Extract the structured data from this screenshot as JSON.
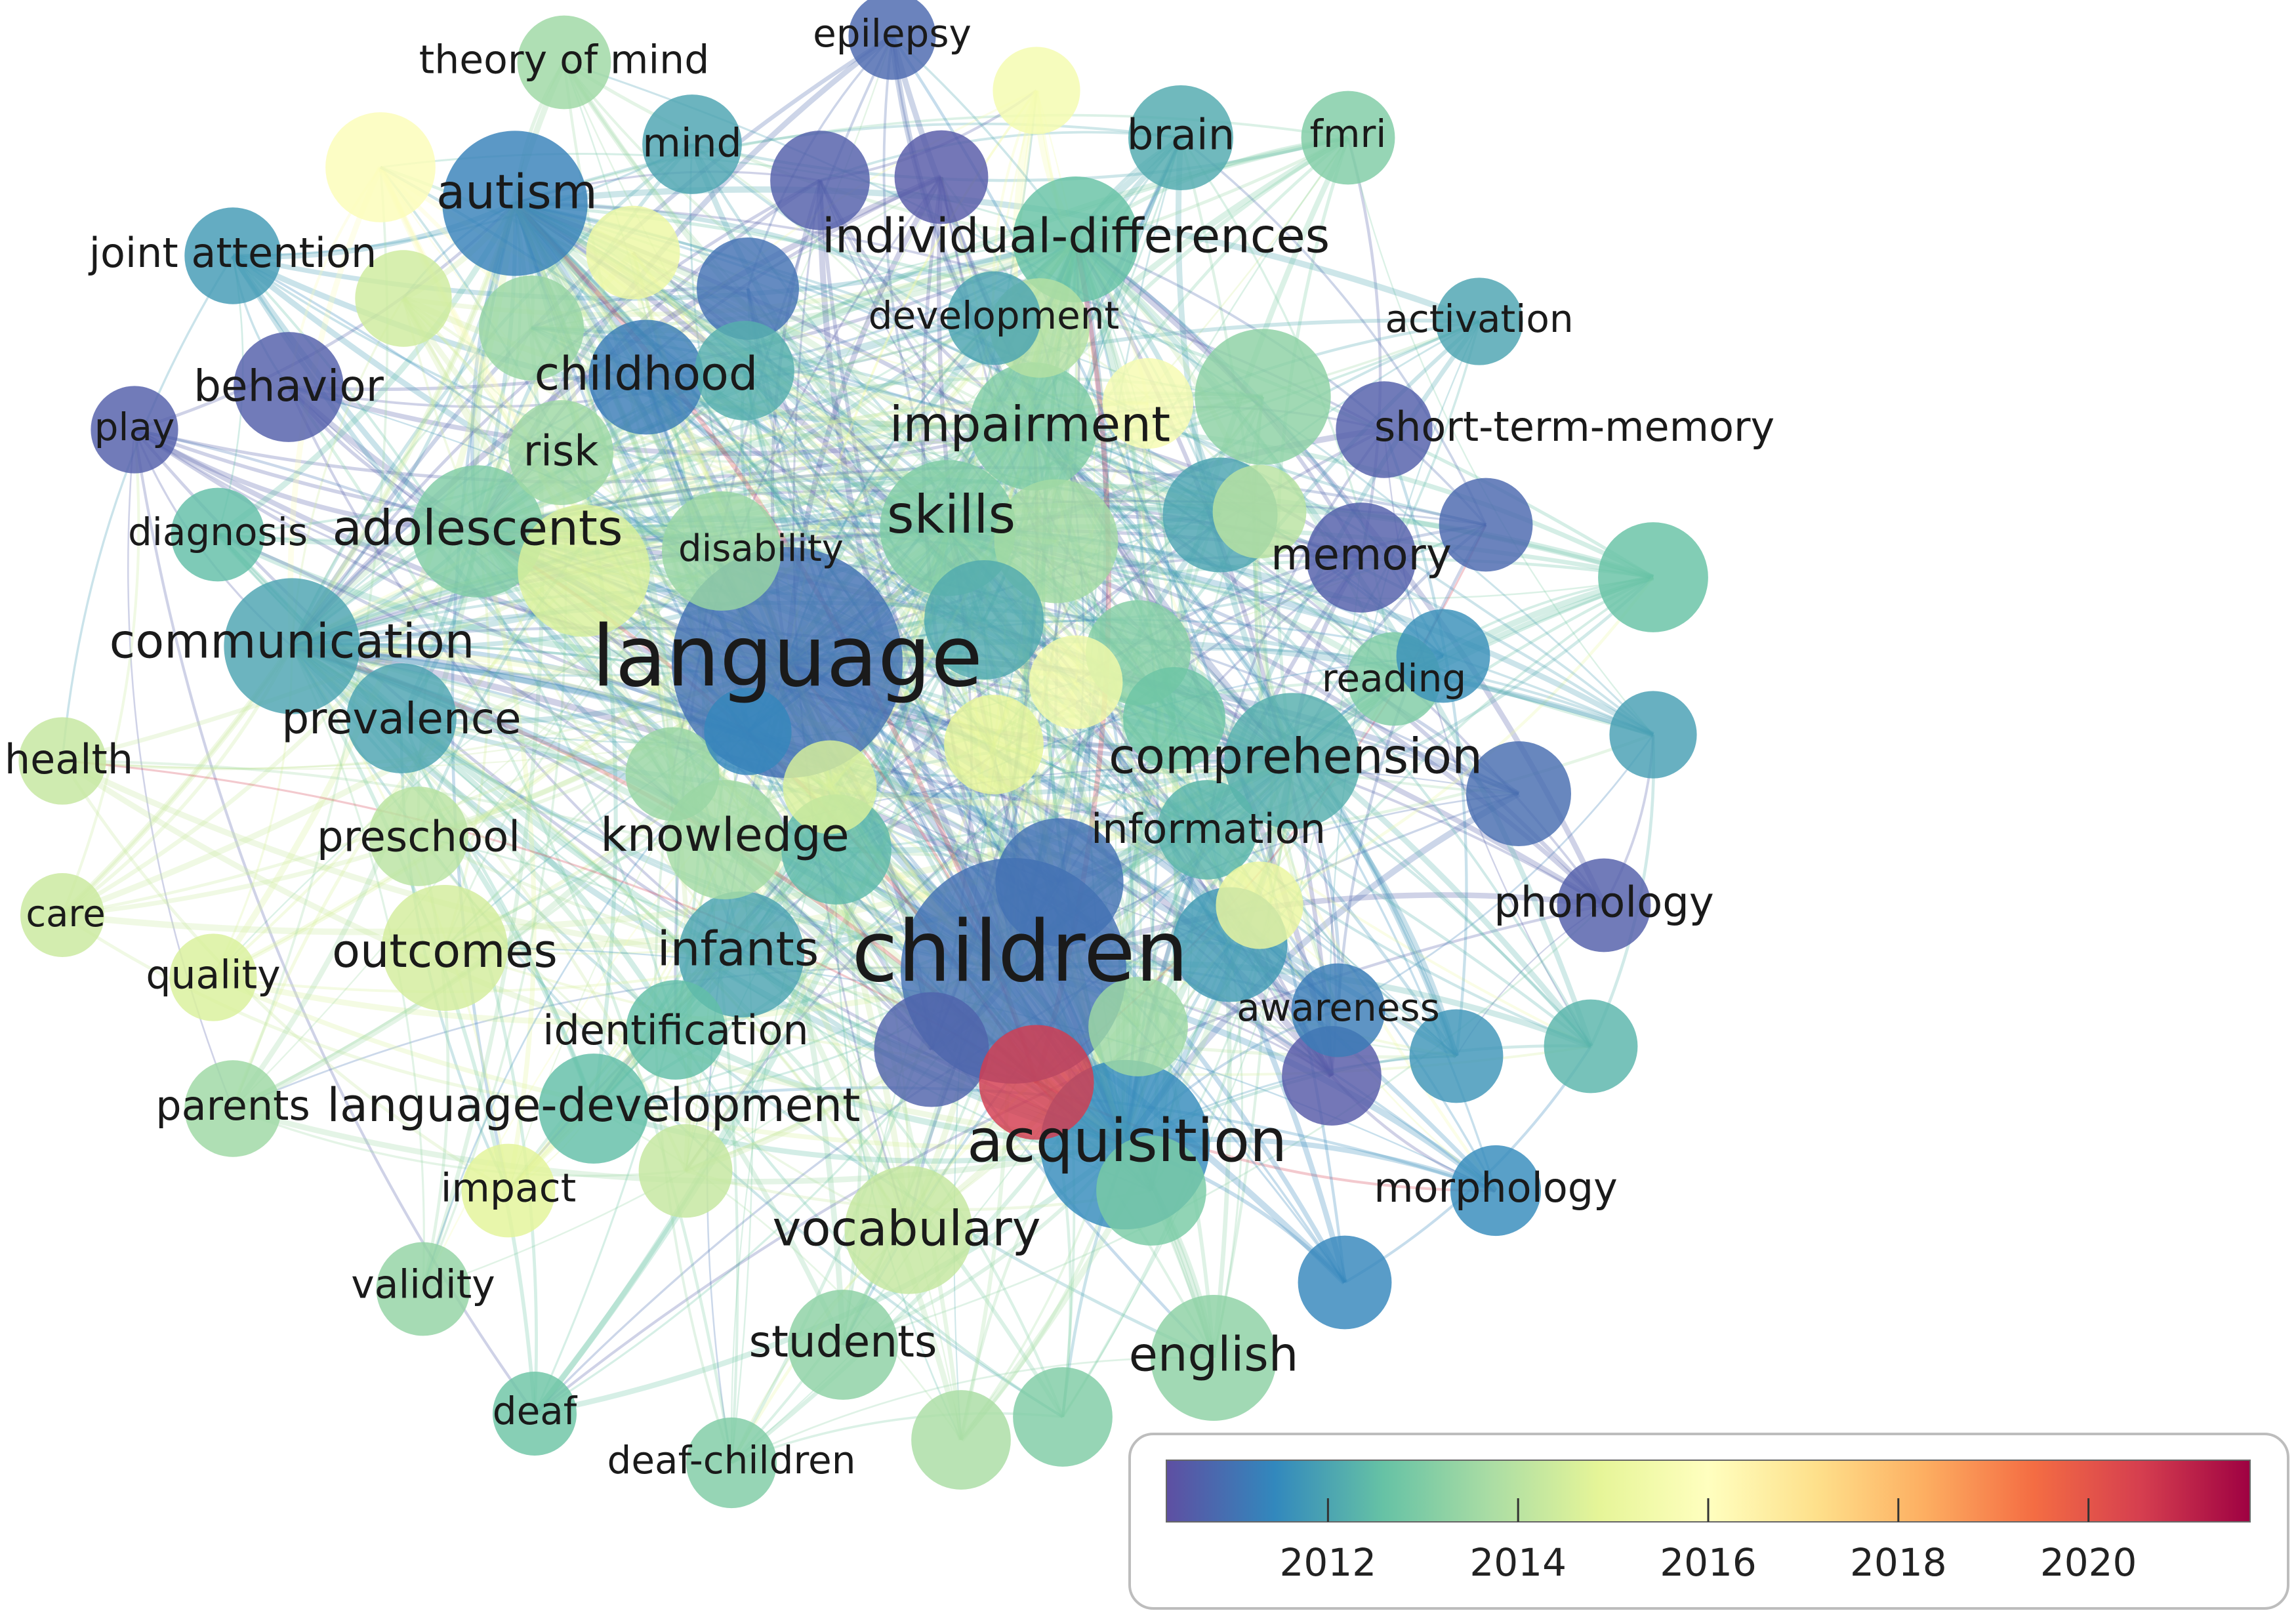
{
  "network": {
    "nodes": [
      {
        "id": "language",
        "label": "language",
        "year": 2011.0,
        "weight": 100
      },
      {
        "id": "children",
        "label": "children",
        "year": 2011.0,
        "weight": 95
      },
      {
        "id": "acquisition",
        "label": "acquisition",
        "year": 2011.5,
        "weight": 50
      },
      {
        "id": "comprehension",
        "label": "comprehension",
        "year": 2012.2,
        "weight": 30
      },
      {
        "id": "autism",
        "label": "autism",
        "year": 2011.3,
        "weight": 35
      },
      {
        "id": "skills",
        "label": "skills",
        "year": 2013.0,
        "weight": 30
      },
      {
        "id": "adolescents",
        "label": "adolescents",
        "year": 2013.0,
        "weight": 28
      },
      {
        "id": "communication",
        "label": "communication",
        "year": 2012.0,
        "weight": 30
      },
      {
        "id": "impairment",
        "label": "impairment",
        "year": 2013.0,
        "weight": 26
      },
      {
        "id": "individual-differences",
        "label": "individual-differences",
        "year": 2012.6,
        "weight": 25
      },
      {
        "id": "vocabulary",
        "label": "vocabulary",
        "year": 2014.2,
        "weight": 26
      },
      {
        "id": "english",
        "label": "english",
        "year": 2013.2,
        "weight": 25
      },
      {
        "id": "outcomes",
        "label": "outcomes",
        "year": 2014.5,
        "weight": 25
      },
      {
        "id": "infants",
        "label": "infants",
        "year": 2012.0,
        "weight": 25
      },
      {
        "id": "knowledge",
        "label": "knowledge",
        "year": 2013.6,
        "weight": 22
      },
      {
        "id": "childhood",
        "label": "childhood",
        "year": 2011.2,
        "weight": 20
      },
      {
        "id": "behavior",
        "label": "behavior",
        "year": 2010.6,
        "weight": 18
      },
      {
        "id": "memory",
        "label": "memory",
        "year": 2010.6,
        "weight": 18
      },
      {
        "id": "prevalence",
        "label": "prevalence",
        "year": 2012.0,
        "weight": 18
      },
      {
        "id": "language-development",
        "label": "language-development",
        "year": 2012.5,
        "weight": 18
      },
      {
        "id": "students",
        "label": "students",
        "year": 2013.2,
        "weight": 18
      },
      {
        "id": "brain",
        "label": "brain",
        "year": 2012.1,
        "weight": 16
      },
      {
        "id": "risk",
        "label": "risk",
        "year": 2013.5,
        "weight": 16
      },
      {
        "id": "mind",
        "label": "mind",
        "year": 2012.0,
        "weight": 14
      },
      {
        "id": "preschool",
        "label": "preschool",
        "year": 2014.0,
        "weight": 14
      },
      {
        "id": "information",
        "label": "information",
        "year": 2012.3,
        "weight": 14
      },
      {
        "id": "identification",
        "label": "identification",
        "year": 2012.5,
        "weight": 14
      },
      {
        "id": "short-term-memory",
        "label": "short-term-memory",
        "year": 2010.6,
        "weight": 13
      },
      {
        "id": "development",
        "label": "development",
        "year": 2012.0,
        "weight": 12
      },
      {
        "id": "fmri",
        "label": "fmri",
        "year": 2013.0,
        "weight": 12
      },
      {
        "id": "activation",
        "label": "activation",
        "year": 2012.0,
        "weight": 10
      },
      {
        "id": "theory of mind",
        "label": "theory of mind",
        "year": 2013.5,
        "weight": 12
      },
      {
        "id": "joint attention",
        "label": "joint attention",
        "year": 2011.8,
        "weight": 13
      },
      {
        "id": "epilepsy",
        "label": "epilepsy",
        "year": 2010.8,
        "weight": 10
      },
      {
        "id": "play",
        "label": "play",
        "year": 2010.6,
        "weight": 10
      },
      {
        "id": "diagnosis",
        "label": "diagnosis",
        "year": 2012.5,
        "weight": 12
      },
      {
        "id": "disability",
        "label": "disability",
        "year": 2013.4,
        "weight": 22
      },
      {
        "id": "reading",
        "label": "reading",
        "year": 2013.0,
        "weight": 12
      },
      {
        "id": "health",
        "label": "health",
        "year": 2014.2,
        "weight": 10
      },
      {
        "id": "care",
        "label": "care",
        "year": 2014.3,
        "weight": 9
      },
      {
        "id": "quality",
        "label": "quality",
        "year": 2014.6,
        "weight": 10
      },
      {
        "id": "parents",
        "label": "parents",
        "year": 2013.5,
        "weight": 13
      },
      {
        "id": "impact",
        "label": "impact",
        "year": 2014.8,
        "weight": 12
      },
      {
        "id": "validity",
        "label": "validity",
        "year": 2013.3,
        "weight": 12
      },
      {
        "id": "deaf",
        "label": "deaf",
        "year": 2012.7,
        "weight": 9
      },
      {
        "id": "deaf-children",
        "label": "deaf-children",
        "year": 2013.0,
        "weight": 11
      },
      {
        "id": "awareness",
        "label": "awareness",
        "year": 2011.2,
        "weight": 12
      },
      {
        "id": "morphology",
        "label": "morphology",
        "year": 2011.5,
        "weight": 11
      },
      {
        "id": "phonology",
        "label": "phonology",
        "year": 2010.6,
        "weight": 12
      }
    ],
    "minor_nodes": [
      {
        "year": 2015.8,
        "weight": 18
      },
      {
        "year": 2011.0,
        "weight": 15
      },
      {
        "year": 2013.4,
        "weight": 16
      },
      {
        "year": 2010.6,
        "weight": 14
      },
      {
        "year": 2015.2,
        "weight": 12
      },
      {
        "year": 2014.4,
        "weight": 13
      },
      {
        "year": 2010.5,
        "weight": 12
      },
      {
        "year": 2015.5,
        "weight": 10
      },
      {
        "year": 2013.2,
        "weight": 30
      },
      {
        "year": 2012.0,
        "weight": 20
      },
      {
        "year": 2013.6,
        "weight": 24
      },
      {
        "year": 2014.6,
        "weight": 28
      },
      {
        "year": 2012.1,
        "weight": 22
      },
      {
        "year": 2012.7,
        "weight": 15
      },
      {
        "year": 2011.4,
        "weight": 10
      },
      {
        "year": 2010.5,
        "weight": 14
      },
      {
        "year": 2011.8,
        "weight": 20
      },
      {
        "year": 2013.1,
        "weight": 16
      },
      {
        "year": 2015.4,
        "weight": 12
      },
      {
        "year": 2014.9,
        "weight": 14
      },
      {
        "year": 2012.4,
        "weight": 18
      },
      {
        "year": 2011.0,
        "weight": 26
      },
      {
        "year": 2010.7,
        "weight": 20
      },
      {
        "year": 2013.5,
        "weight": 14
      },
      {
        "year": 2011.7,
        "weight": 12
      },
      {
        "year": 2014.0,
        "weight": 12
      },
      {
        "year": 2015.6,
        "weight": 11
      },
      {
        "year": 2020.6,
        "weight": 20
      },
      {
        "year": 2010.9,
        "weight": 16
      },
      {
        "year": 2012.6,
        "weight": 18
      },
      {
        "year": 2013.9,
        "weight": 14
      },
      {
        "year": 2011.6,
        "weight": 12
      },
      {
        "year": 2012.9,
        "weight": 18
      },
      {
        "year": 2014.2,
        "weight": 12
      },
      {
        "year": 2011.4,
        "weight": 12
      },
      {
        "year": 2013.0,
        "weight": 14
      },
      {
        "year": 2012.3,
        "weight": 12
      },
      {
        "year": 2014.6,
        "weight": 12
      },
      {
        "year": 2015.1,
        "weight": 10
      },
      {
        "year": 2012.2,
        "weight": 14
      },
      {
        "year": 2013.4,
        "weight": 12
      },
      {
        "year": 2011.9,
        "weight": 10
      },
      {
        "year": 2010.8,
        "weight": 12
      },
      {
        "year": 2013.7,
        "weight": 14
      }
    ]
  },
  "colorbar": {
    "min_year": 2010.3,
    "max_year": 2021.7,
    "ticks": [
      "2012",
      "2014",
      "2016",
      "2018",
      "2020"
    ],
    "stops": [
      "#5e4fa2",
      "#3288bd",
      "#66c2a5",
      "#abdda4",
      "#e6f598",
      "#ffffbf",
      "#fee08b",
      "#fdae61",
      "#f46d43",
      "#d53e4f",
      "#9e0142"
    ]
  }
}
